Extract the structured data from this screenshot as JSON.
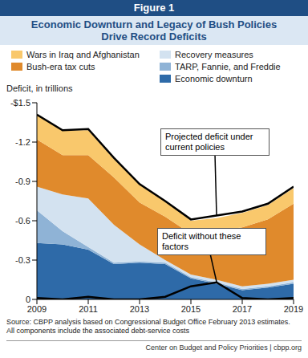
{
  "chart_data": {
    "type": "area",
    "header": "Figure 1",
    "title": "Economic Downturn and Legacy of Bush Policies Drive Record Deficits",
    "y_label": "Deficit, in trillions",
    "stacked": true,
    "x": [
      2009,
      2010,
      2011,
      2012,
      2013,
      2014,
      2015,
      2016,
      2017,
      2018,
      2019
    ],
    "xlim": [
      2009,
      2019
    ],
    "xticks": [
      2009,
      2011,
      2013,
      2015,
      2017,
      2019
    ],
    "ylim": [
      0,
      -1.5
    ],
    "yticks": [
      {
        "value": -1.5,
        "label": "-$1.5"
      },
      -1.2,
      -0.9,
      -0.6,
      -0.3,
      0
    ],
    "series": [
      {
        "name": "Economic downturn",
        "type": "area",
        "color": "#2e6aa8",
        "values": [
          -0.43,
          -0.42,
          -0.38,
          -0.27,
          -0.28,
          -0.27,
          -0.16,
          -0.12,
          -0.07,
          -0.09,
          -0.12
        ]
      },
      {
        "name": "TARP, Fannie, and Freddie",
        "type": "area",
        "color": "#8fb3d6",
        "values": [
          -0.25,
          -0.1,
          -0.02,
          -0.01,
          -0.01,
          -0.01,
          -0.01,
          -0.01,
          -0.01,
          -0.01,
          -0.01
        ]
      },
      {
        "name": "Recovery measures",
        "type": "area",
        "color": "#d3e2f0",
        "values": [
          -0.18,
          -0.28,
          -0.37,
          -0.29,
          -0.13,
          -0.02,
          -0.02,
          -0.02,
          -0.02,
          -0.02,
          -0.02
        ]
      },
      {
        "name": "Bush-era tax cuts",
        "type": "area",
        "color": "#e08a2c",
        "values": [
          -0.36,
          -0.3,
          -0.33,
          -0.36,
          -0.32,
          -0.33,
          -0.31,
          -0.37,
          -0.45,
          -0.49,
          -0.58
        ]
      },
      {
        "name": "Wars in Iraq and Afghanistan",
        "type": "area",
        "color": "#f9c86c",
        "values": [
          -0.19,
          -0.19,
          -0.19,
          -0.14,
          -0.14,
          -0.12,
          -0.1,
          -0.1,
          -0.11,
          -0.11,
          -0.12
        ]
      },
      {
        "name": "Projected deficit under current policies",
        "type": "line",
        "color": "#000000",
        "values": [
          -1.41,
          -1.29,
          -1.3,
          -1.08,
          -0.88,
          -0.75,
          -0.61,
          -0.64,
          -0.67,
          -0.73,
          -0.86
        ]
      },
      {
        "name": "Deficit without these factors",
        "type": "line",
        "color": "#000000",
        "values": [
          -0.01,
          0,
          -0.02,
          0,
          0,
          -0.02,
          -0.1,
          -0.13,
          -0.01,
          0,
          -0.01
        ]
      }
    ],
    "notes": [
      "Source: CBPP analysis based on Congressional Budget Office February 2013 estimates.",
      "All components include the associated debt-service costs"
    ],
    "credit": "Center on Budget and Policy Priorities | cbpp.org"
  }
}
